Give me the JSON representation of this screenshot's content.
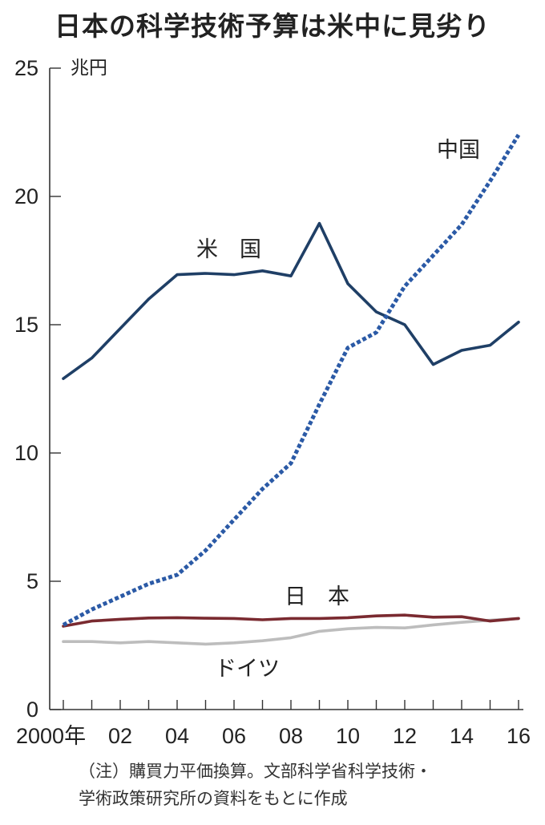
{
  "title": "日本の科学技術予算は米中に見劣り",
  "chart_data": {
    "type": "line",
    "unit_label": "兆円",
    "x": [
      2000,
      2001,
      2002,
      2003,
      2004,
      2005,
      2006,
      2007,
      2008,
      2009,
      2010,
      2011,
      2012,
      2013,
      2014,
      2015,
      2016
    ],
    "xtick_labels": [
      "2000年",
      "02",
      "04",
      "06",
      "08",
      "10",
      "12",
      "14",
      "16"
    ],
    "xtick_values": [
      2000,
      2002,
      2004,
      2006,
      2008,
      2010,
      2012,
      2014,
      2016
    ],
    "yticks": [
      0,
      5,
      10,
      15,
      20,
      25
    ],
    "ylim": [
      0,
      25
    ],
    "grid": false,
    "series": [
      {
        "name": "米　国",
        "color": "#1f3f66",
        "style": "solid",
        "values": [
          12.9,
          13.7,
          14.85,
          16.0,
          16.95,
          17.0,
          16.95,
          17.1,
          16.9,
          18.95,
          16.6,
          15.5,
          15.0,
          13.45,
          14.0,
          14.2,
          15.1
        ]
      },
      {
        "name": "中国",
        "color": "#2b5aa6",
        "style": "dotted",
        "values": [
          3.3,
          3.9,
          4.4,
          4.9,
          5.25,
          6.2,
          7.4,
          8.6,
          9.6,
          11.9,
          14.1,
          14.7,
          16.5,
          17.7,
          18.9,
          20.6,
          22.4
        ]
      },
      {
        "name": "日　本",
        "color": "#7a2a30",
        "style": "solid",
        "values": [
          3.25,
          3.45,
          3.52,
          3.57,
          3.58,
          3.56,
          3.55,
          3.5,
          3.55,
          3.55,
          3.58,
          3.65,
          3.68,
          3.6,
          3.62,
          3.45,
          3.55
        ]
      },
      {
        "name": "ドイツ",
        "color": "#bdbdbd",
        "style": "solid",
        "values": [
          2.65,
          2.65,
          2.6,
          2.65,
          2.6,
          2.55,
          2.6,
          2.68,
          2.8,
          3.05,
          3.15,
          3.2,
          3.18,
          3.3,
          3.4,
          3.48,
          3.55
        ]
      }
    ]
  },
  "note_lines": [
    "（注）購買力平価換算。文部科学省科学技術・",
    "学術政策研究所の資料をもとに作成"
  ]
}
